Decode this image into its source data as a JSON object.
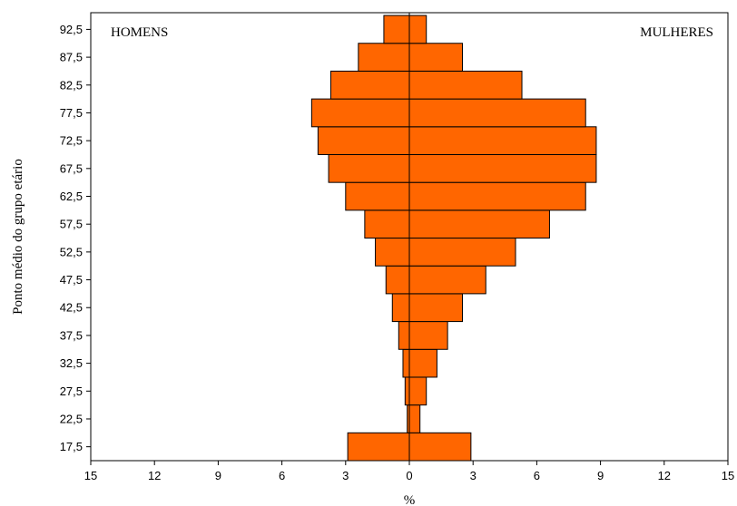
{
  "chart_data": {
    "type": "bar",
    "orientation": "horizontal-butterfly",
    "categories": [
      "17,5",
      "22,5",
      "27,5",
      "32,5",
      "37,5",
      "42,5",
      "47,5",
      "52,5",
      "57,5",
      "62,5",
      "67,5",
      "72,5",
      "77,5",
      "82,5",
      "87,5",
      "92,5"
    ],
    "series": [
      {
        "name": "HOMENS",
        "side": "left",
        "values": [
          2.9,
          0.1,
          0.2,
          0.3,
          0.5,
          0.8,
          1.1,
          1.6,
          2.1,
          3.0,
          3.8,
          4.3,
          4.6,
          3.7,
          2.4,
          1.2
        ]
      },
      {
        "name": "MULHERES",
        "side": "right",
        "values": [
          2.9,
          0.5,
          0.8,
          1.3,
          1.8,
          2.5,
          3.6,
          5.0,
          6.6,
          8.3,
          8.8,
          8.8,
          8.3,
          5.3,
          2.5,
          0.8
        ]
      }
    ],
    "x_ticks": [
      "15",
      "12",
      "9",
      "6",
      "3",
      "0",
      "3",
      "6",
      "9",
      "12",
      "15"
    ],
    "xlim": [
      -15,
      15
    ],
    "xlabel": "%",
    "ylabel": "Ponto médio do grupo etário",
    "grid": false,
    "colors": {
      "bar_fill": "#FF6600",
      "bar_stroke": "#000000"
    }
  }
}
